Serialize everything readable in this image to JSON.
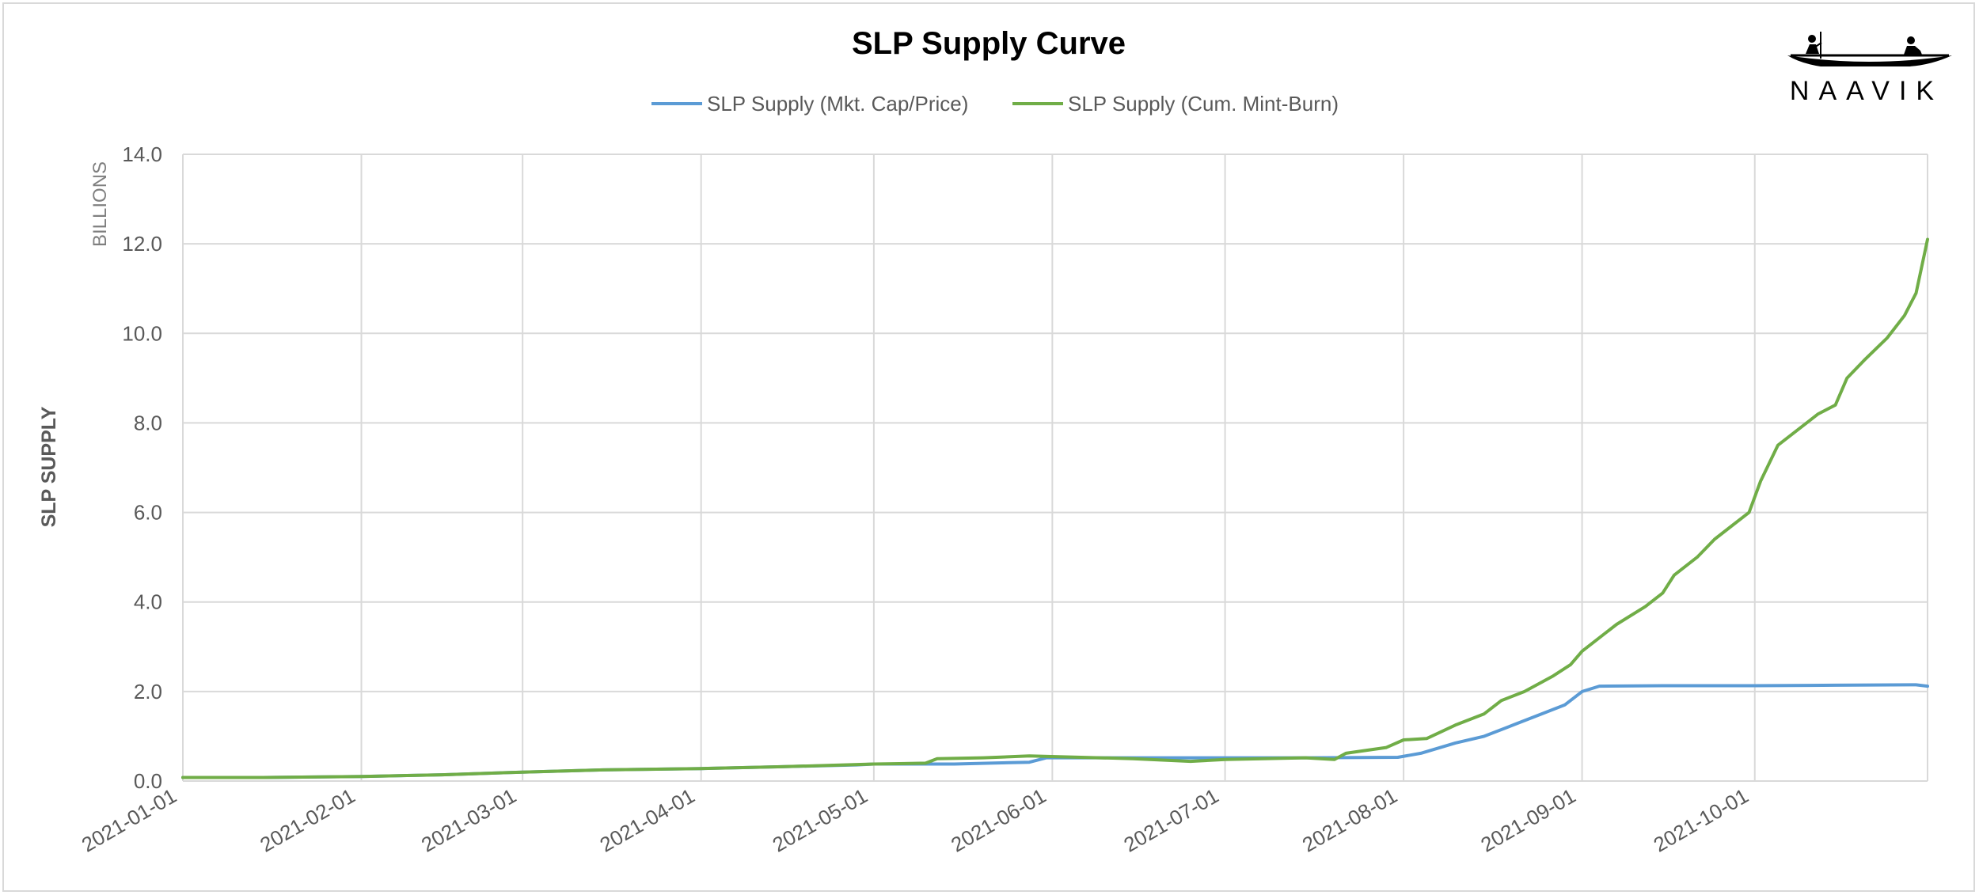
{
  "chart_data": {
    "type": "line",
    "title": "SLP Supply Curve",
    "ylabel": "SLP SUPPLY",
    "y_unit_label": "BILLIONS",
    "xlabel": "",
    "ylim": [
      0,
      14
    ],
    "yticks": [
      "0.0",
      "2.0",
      "4.0",
      "6.0",
      "8.0",
      "10.0",
      "12.0",
      "14.0"
    ],
    "xlim": [
      "2021-01-01",
      "2021-10-31"
    ],
    "xticks": [
      "2021-01-01",
      "2021-02-01",
      "2021-03-01",
      "2021-04-01",
      "2021-05-01",
      "2021-06-01",
      "2021-07-01",
      "2021-08-01",
      "2021-09-01",
      "2021-10-01"
    ],
    "grid": true,
    "legend_position": "top-center",
    "series": [
      {
        "name": "SLP Supply (Mkt. Cap/Price)",
        "color": "#5b9bd5",
        "points": [
          [
            "2021-01-01",
            0.08
          ],
          [
            "2021-01-15",
            0.08
          ],
          [
            "2021-02-01",
            0.1
          ],
          [
            "2021-02-15",
            0.14
          ],
          [
            "2021-03-01",
            0.2
          ],
          [
            "2021-03-15",
            0.25
          ],
          [
            "2021-04-01",
            0.28
          ],
          [
            "2021-04-15",
            0.32
          ],
          [
            "2021-04-28",
            0.36
          ],
          [
            "2021-05-01",
            0.38
          ],
          [
            "2021-05-15",
            0.38
          ],
          [
            "2021-05-28",
            0.42
          ],
          [
            "2021-05-31",
            0.52
          ],
          [
            "2021-06-15",
            0.52
          ],
          [
            "2021-07-01",
            0.52
          ],
          [
            "2021-07-15",
            0.52
          ],
          [
            "2021-07-31",
            0.53
          ],
          [
            "2021-08-04",
            0.62
          ],
          [
            "2021-08-10",
            0.85
          ],
          [
            "2021-08-15",
            1.0
          ],
          [
            "2021-08-20",
            1.25
          ],
          [
            "2021-08-25",
            1.5
          ],
          [
            "2021-08-29",
            1.7
          ],
          [
            "2021-09-01",
            2.0
          ],
          [
            "2021-09-04",
            2.12
          ],
          [
            "2021-09-15",
            2.13
          ],
          [
            "2021-10-01",
            2.13
          ],
          [
            "2021-10-15",
            2.14
          ],
          [
            "2021-10-29",
            2.15
          ],
          [
            "2021-10-31",
            2.12
          ]
        ]
      },
      {
        "name": "SLP Supply (Cum. Mint-Burn)",
        "color": "#70ad47",
        "points": [
          [
            "2021-01-01",
            0.08
          ],
          [
            "2021-01-15",
            0.08
          ],
          [
            "2021-02-01",
            0.1
          ],
          [
            "2021-02-15",
            0.14
          ],
          [
            "2021-03-01",
            0.2
          ],
          [
            "2021-03-15",
            0.25
          ],
          [
            "2021-04-01",
            0.28
          ],
          [
            "2021-04-15",
            0.32
          ],
          [
            "2021-05-01",
            0.38
          ],
          [
            "2021-05-10",
            0.4
          ],
          [
            "2021-05-12",
            0.5
          ],
          [
            "2021-05-20",
            0.52
          ],
          [
            "2021-05-28",
            0.56
          ],
          [
            "2021-06-15",
            0.5
          ],
          [
            "2021-06-25",
            0.44
          ],
          [
            "2021-07-01",
            0.48
          ],
          [
            "2021-07-15",
            0.52
          ],
          [
            "2021-07-20",
            0.48
          ],
          [
            "2021-07-22",
            0.62
          ],
          [
            "2021-07-29",
            0.75
          ],
          [
            "2021-08-01",
            0.92
          ],
          [
            "2021-08-05",
            0.95
          ],
          [
            "2021-08-10",
            1.25
          ],
          [
            "2021-08-15",
            1.5
          ],
          [
            "2021-08-18",
            1.8
          ],
          [
            "2021-08-22",
            2.0
          ],
          [
            "2021-08-27",
            2.35
          ],
          [
            "2021-08-30",
            2.6
          ],
          [
            "2021-09-01",
            2.9
          ],
          [
            "2021-09-07",
            3.5
          ],
          [
            "2021-09-12",
            3.9
          ],
          [
            "2021-09-15",
            4.2
          ],
          [
            "2021-09-17",
            4.6
          ],
          [
            "2021-09-21",
            5.0
          ],
          [
            "2021-09-24",
            5.4
          ],
          [
            "2021-09-27",
            5.7
          ],
          [
            "2021-09-30",
            6.0
          ],
          [
            "2021-10-02",
            6.7
          ],
          [
            "2021-10-05",
            7.5
          ],
          [
            "2021-10-09",
            7.9
          ],
          [
            "2021-10-12",
            8.2
          ],
          [
            "2021-10-15",
            8.4
          ],
          [
            "2021-10-17",
            9.0
          ],
          [
            "2021-10-20",
            9.4
          ],
          [
            "2021-10-24",
            9.9
          ],
          [
            "2021-10-27",
            10.4
          ],
          [
            "2021-10-29",
            10.9
          ],
          [
            "2021-10-31",
            12.1
          ]
        ]
      }
    ]
  },
  "logo": {
    "text": "NAAVIK"
  }
}
